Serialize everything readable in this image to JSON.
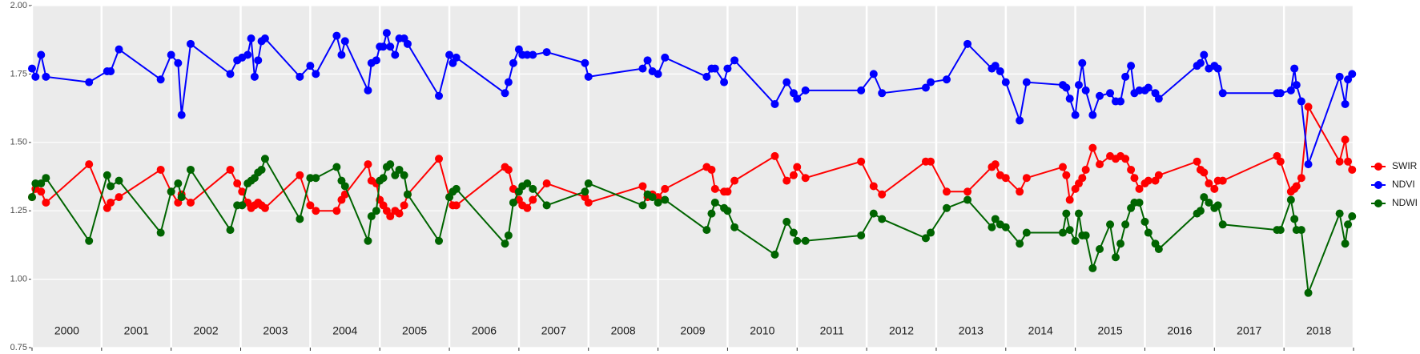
{
  "chart_data": {
    "type": "line",
    "x": [
      2000.0,
      2000.05,
      2000.13,
      2000.2,
      2000.82,
      2001.08,
      2001.13,
      2001.25,
      2001.85,
      2002.0,
      2002.1,
      2002.15,
      2002.28,
      2002.85,
      2002.95,
      2003.02,
      2003.1,
      2003.15,
      2003.2,
      2003.25,
      2003.3,
      2003.35,
      2003.85,
      2004.0,
      2004.08,
      2004.38,
      2004.45,
      2004.5,
      2004.83,
      2004.88,
      2004.95,
      2005.0,
      2005.05,
      2005.1,
      2005.15,
      2005.22,
      2005.28,
      2005.35,
      2005.4,
      2005.85,
      2006.0,
      2006.05,
      2006.1,
      2006.8,
      2006.85,
      2006.92,
      2007.0,
      2007.05,
      2007.12,
      2007.2,
      2007.4,
      2007.95,
      2008.0,
      2008.78,
      2008.85,
      2008.92,
      2009.0,
      2009.1,
      2009.7,
      2009.77,
      2009.82,
      2009.95,
      2010.0,
      2010.1,
      2010.68,
      2010.85,
      2010.95,
      2011.0,
      2011.12,
      2011.92,
      2012.1,
      2012.22,
      2012.85,
      2012.92,
      2013.15,
      2013.45,
      2013.8,
      2013.85,
      2013.92,
      2014.0,
      2014.2,
      2014.3,
      2014.82,
      2014.87,
      2014.92,
      2015.0,
      2015.05,
      2015.1,
      2015.15,
      2015.25,
      2015.35,
      2015.5,
      2015.58,
      2015.65,
      2015.72,
      2015.8,
      2015.85,
      2015.92,
      2016.0,
      2016.05,
      2016.15,
      2016.2,
      2016.75,
      2016.8,
      2016.85,
      2016.92,
      2017.0,
      2017.05,
      2017.12,
      2017.9,
      2017.95,
      2018.1,
      2018.15,
      2018.18,
      2018.25,
      2018.35,
      2018.8,
      2018.88,
      2018.92,
      2018.98
    ],
    "series": [
      {
        "name": "SWIR",
        "color": "#ff0000",
        "values": [
          1.3,
          1.33,
          1.32,
          1.28,
          1.42,
          1.26,
          1.28,
          1.3,
          1.4,
          1.32,
          1.28,
          1.31,
          1.28,
          1.4,
          1.35,
          1.32,
          1.28,
          1.26,
          1.27,
          1.28,
          1.27,
          1.26,
          1.38,
          1.27,
          1.25,
          1.25,
          1.29,
          1.31,
          1.42,
          1.36,
          1.35,
          1.29,
          1.27,
          1.25,
          1.23,
          1.25,
          1.24,
          1.27,
          1.31,
          1.44,
          1.3,
          1.27,
          1.27,
          1.41,
          1.4,
          1.33,
          1.29,
          1.27,
          1.26,
          1.29,
          1.35,
          1.3,
          1.28,
          1.34,
          1.3,
          1.31,
          1.3,
          1.33,
          1.41,
          1.4,
          1.33,
          1.32,
          1.32,
          1.36,
          1.45,
          1.36,
          1.38,
          1.41,
          1.37,
          1.43,
          1.34,
          1.31,
          1.43,
          1.43,
          1.32,
          1.32,
          1.41,
          1.42,
          1.38,
          1.37,
          1.32,
          1.37,
          1.41,
          1.38,
          1.29,
          1.33,
          1.35,
          1.37,
          1.4,
          1.48,
          1.42,
          1.45,
          1.44,
          1.45,
          1.44,
          1.4,
          1.37,
          1.33,
          1.35,
          1.36,
          1.36,
          1.38,
          1.43,
          1.4,
          1.39,
          1.35,
          1.33,
          1.36,
          1.36,
          1.45,
          1.43,
          1.32,
          1.33,
          1.34,
          1.37,
          1.63,
          1.43,
          1.51,
          1.43,
          1.4
        ]
      },
      {
        "name": "NDVI",
        "color": "#0000ff",
        "values": [
          1.77,
          1.74,
          1.82,
          1.74,
          1.72,
          1.76,
          1.76,
          1.84,
          1.73,
          1.82,
          1.79,
          1.6,
          1.86,
          1.75,
          1.8,
          1.81,
          1.82,
          1.88,
          1.74,
          1.8,
          1.87,
          1.88,
          1.74,
          1.78,
          1.75,
          1.89,
          1.82,
          1.87,
          1.69,
          1.79,
          1.8,
          1.85,
          1.85,
          1.9,
          1.85,
          1.82,
          1.88,
          1.88,
          1.86,
          1.67,
          1.82,
          1.79,
          1.81,
          1.68,
          1.72,
          1.79,
          1.84,
          1.82,
          1.82,
          1.82,
          1.83,
          1.79,
          1.74,
          1.77,
          1.8,
          1.76,
          1.75,
          1.81,
          1.74,
          1.77,
          1.77,
          1.72,
          1.77,
          1.8,
          1.64,
          1.72,
          1.68,
          1.66,
          1.69,
          1.69,
          1.75,
          1.68,
          1.7,
          1.72,
          1.73,
          1.86,
          1.77,
          1.78,
          1.76,
          1.72,
          1.58,
          1.72,
          1.71,
          1.7,
          1.66,
          1.6,
          1.71,
          1.79,
          1.69,
          1.6,
          1.67,
          1.68,
          1.65,
          1.65,
          1.74,
          1.78,
          1.68,
          1.69,
          1.69,
          1.7,
          1.68,
          1.66,
          1.78,
          1.79,
          1.82,
          1.77,
          1.78,
          1.77,
          1.68,
          1.68,
          1.68,
          1.69,
          1.77,
          1.71,
          1.65,
          1.42,
          1.74,
          1.64,
          1.73,
          1.75
        ]
      },
      {
        "name": "NDWI",
        "color": "#006400",
        "values": [
          1.3,
          1.35,
          1.35,
          1.37,
          1.14,
          1.38,
          1.34,
          1.36,
          1.17,
          1.32,
          1.35,
          1.3,
          1.4,
          1.18,
          1.27,
          1.27,
          1.35,
          1.36,
          1.37,
          1.39,
          1.4,
          1.44,
          1.22,
          1.37,
          1.37,
          1.41,
          1.36,
          1.34,
          1.14,
          1.23,
          1.25,
          1.36,
          1.37,
          1.41,
          1.42,
          1.38,
          1.4,
          1.38,
          1.31,
          1.14,
          1.3,
          1.32,
          1.33,
          1.13,
          1.16,
          1.28,
          1.32,
          1.34,
          1.35,
          1.33,
          1.27,
          1.32,
          1.35,
          1.27,
          1.31,
          1.3,
          1.28,
          1.29,
          1.18,
          1.24,
          1.28,
          1.26,
          1.25,
          1.19,
          1.09,
          1.21,
          1.17,
          1.14,
          1.14,
          1.16,
          1.24,
          1.22,
          1.15,
          1.17,
          1.26,
          1.29,
          1.19,
          1.22,
          1.2,
          1.19,
          1.13,
          1.17,
          1.17,
          1.24,
          1.18,
          1.14,
          1.24,
          1.16,
          1.16,
          1.04,
          1.11,
          1.2,
          1.08,
          1.13,
          1.2,
          1.26,
          1.28,
          1.28,
          1.21,
          1.17,
          1.13,
          1.11,
          1.24,
          1.25,
          1.3,
          1.28,
          1.26,
          1.27,
          1.2,
          1.18,
          1.18,
          1.29,
          1.22,
          1.18,
          1.18,
          0.95,
          1.24,
          1.13,
          1.2,
          1.23
        ]
      }
    ],
    "year_labels": [
      "2000",
      "2001",
      "2002",
      "2003",
      "2004",
      "2005",
      "2006",
      "2007",
      "2008",
      "2009",
      "2010",
      "2011",
      "2012",
      "2013",
      "2014",
      "2015",
      "2016",
      "2017",
      "2018"
    ],
    "xlim": [
      2000,
      2019
    ],
    "xticks": [
      2000,
      2001,
      2002,
      2003,
      2004,
      2005,
      2006,
      2007,
      2008,
      2009,
      2010,
      2011,
      2012,
      2013,
      2014,
      2015,
      2016,
      2017,
      2018,
      2019
    ],
    "ylim": [
      0.75,
      2.0
    ],
    "yticks": [
      {
        "value": 0.75,
        "label": "0.75"
      },
      {
        "value": 1.0,
        "label": "1.00"
      },
      {
        "value": 1.25,
        "label": "1.25"
      },
      {
        "value": 1.5,
        "label": "1.50"
      },
      {
        "value": 1.75,
        "label": "1.75"
      },
      {
        "value": 2.0,
        "label": "2.00"
      }
    ],
    "grid": true,
    "legend": "right"
  }
}
